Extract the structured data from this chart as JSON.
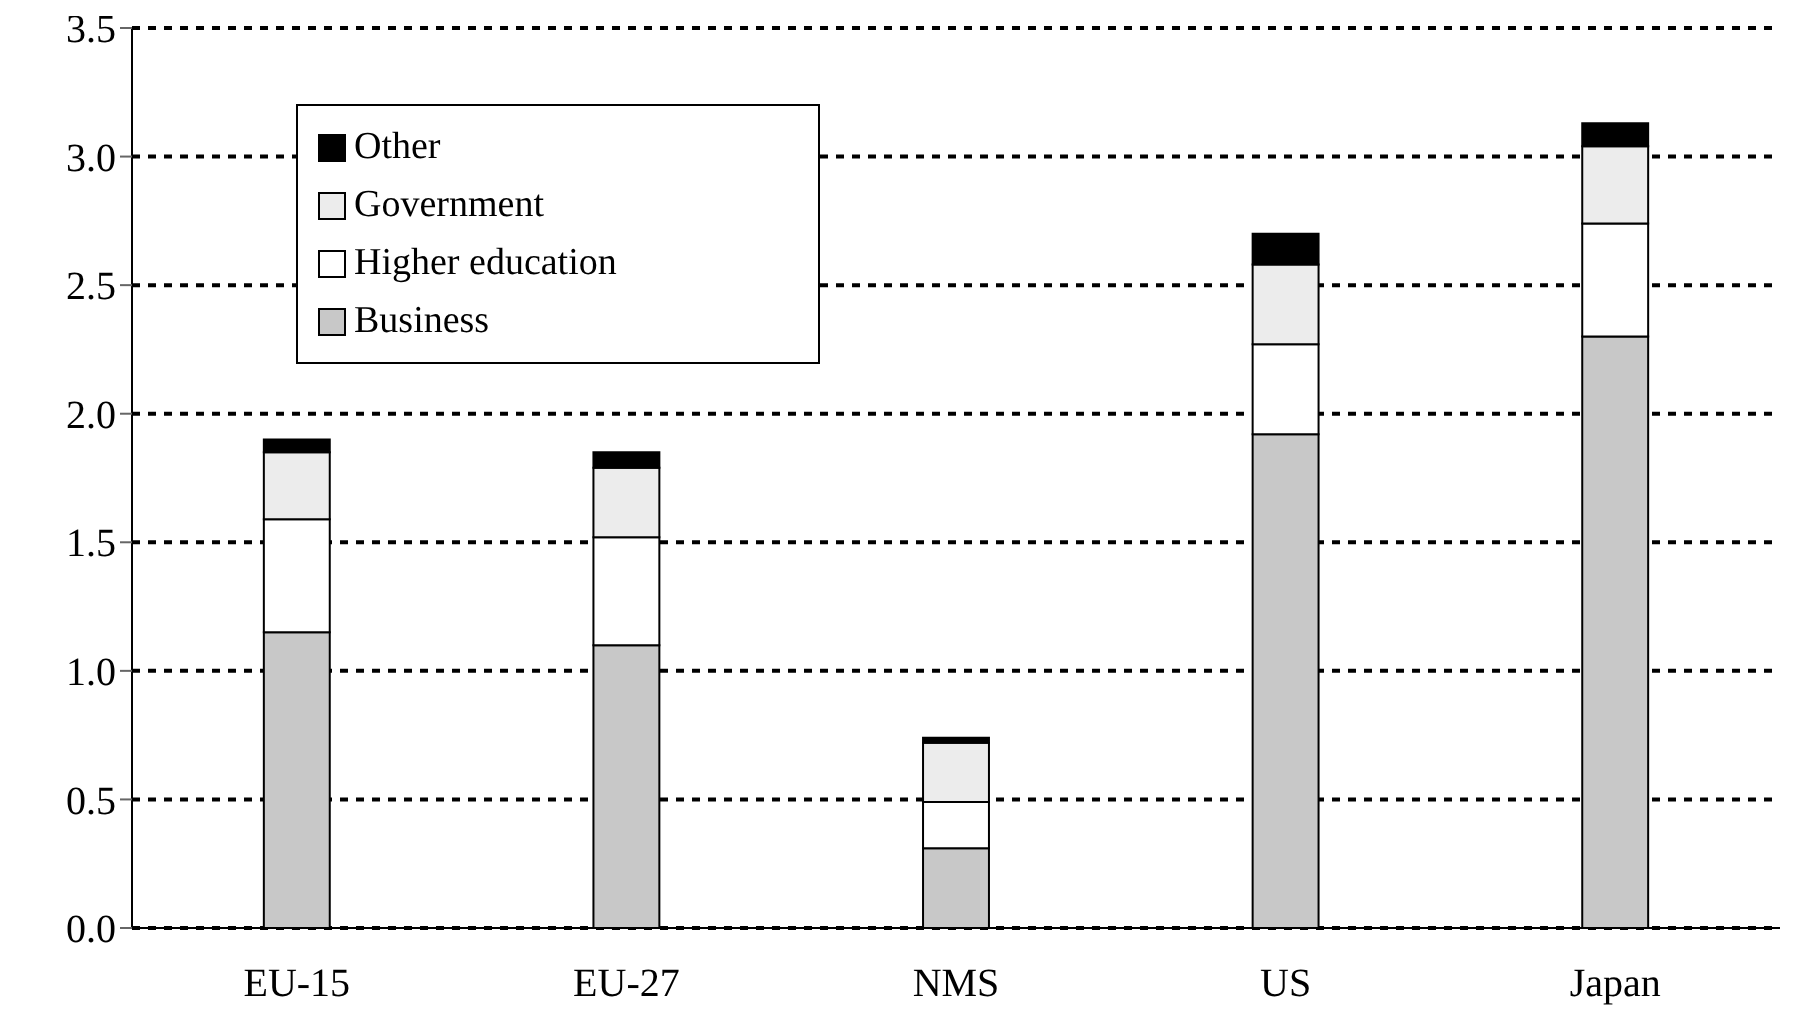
{
  "chart_data": {
    "type": "bar",
    "stacked": true,
    "categories": [
      "EU-15",
      "EU-27",
      "NMS",
      "US",
      "Japan"
    ],
    "series": [
      {
        "name": "Business",
        "color": "#c8c8c8",
        "values": [
          1.15,
          1.1,
          0.31,
          1.92,
          2.3
        ]
      },
      {
        "name": "Higher education",
        "color": "#ffffff",
        "values": [
          0.44,
          0.42,
          0.18,
          0.35,
          0.44
        ]
      },
      {
        "name": "Government",
        "color": "#ececec",
        "values": [
          0.26,
          0.27,
          0.23,
          0.31,
          0.3
        ]
      },
      {
        "name": "Other",
        "color": "#000000",
        "values": [
          0.05,
          0.06,
          0.02,
          0.12,
          0.09
        ]
      }
    ],
    "ylim": [
      0,
      3.5
    ],
    "yticks": [
      {
        "value": 0,
        "label": "0.0"
      },
      0.5,
      {
        "value": 1,
        "label": "1.0"
      },
      1.5,
      {
        "value": 2,
        "label": "2.0"
      },
      2.5,
      {
        "value": 3,
        "label": "3.0"
      },
      3.5
    ],
    "grid": "y",
    "legend": "top left"
  }
}
